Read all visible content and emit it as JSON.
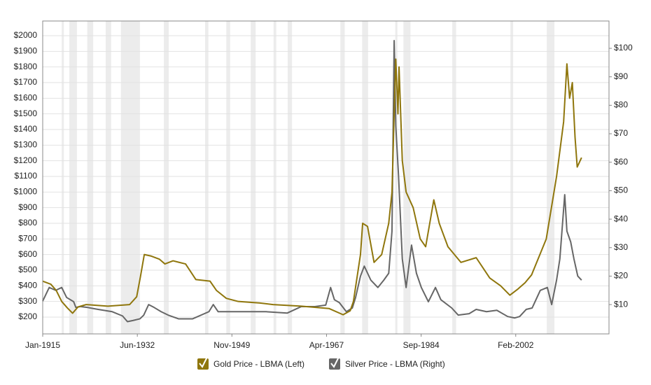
{
  "chart_data": {
    "type": "line",
    "xlim": [
      1915,
      2019.25
    ],
    "xticks": [
      {
        "value": 1915.0,
        "label": "Jan-1915"
      },
      {
        "value": 1932.42,
        "label": "Jun-1932"
      },
      {
        "value": 1949.83,
        "label": "Nov-1949"
      },
      {
        "value": 1967.25,
        "label": "Apr-1967"
      },
      {
        "value": 1984.67,
        "label": "Sep-1984"
      },
      {
        "value": 2002.08,
        "label": "Feb-2002"
      }
    ],
    "ylim": [
      92.5,
      2094
    ],
    "yticks": [
      {
        "value": 200,
        "label": "$200"
      },
      {
        "value": 300,
        "label": "$300"
      },
      {
        "value": 400,
        "label": "$400"
      },
      {
        "value": 500,
        "label": "$500"
      },
      {
        "value": 600,
        "label": "$600"
      },
      {
        "value": 700,
        "label": "$700"
      },
      {
        "value": 800,
        "label": "$800"
      },
      {
        "value": 900,
        "label": "$900"
      },
      {
        "value": 1000,
        "label": "$1000"
      },
      {
        "value": 1100,
        "label": "$1100"
      },
      {
        "value": 1200,
        "label": "$1200"
      },
      {
        "value": 1300,
        "label": "$1300"
      },
      {
        "value": 1400,
        "label": "$1400"
      },
      {
        "value": 1500,
        "label": "$1500"
      },
      {
        "value": 1600,
        "label": "$1600"
      },
      {
        "value": 1700,
        "label": "$1700"
      },
      {
        "value": 1800,
        "label": "$1800"
      },
      {
        "value": 1900,
        "label": "$1900"
      },
      {
        "value": 2000,
        "label": "$2000"
      }
    ],
    "y2lim": [
      -0.3,
      109.6
    ],
    "y2ticks": [
      {
        "value": 10,
        "label": "$10"
      },
      {
        "value": 20,
        "label": "$20"
      },
      {
        "value": 30,
        "label": "$30"
      },
      {
        "value": 40,
        "label": "$40"
      },
      {
        "value": 50,
        "label": "$50"
      },
      {
        "value": 60,
        "label": "$60"
      },
      {
        "value": 70,
        "label": "$70"
      },
      {
        "value": 80,
        "label": "$80"
      },
      {
        "value": 90,
        "label": "$90"
      },
      {
        "value": 100,
        "label": "$100"
      }
    ],
    "grid": true,
    "legend": "bottom",
    "shaded_periods": [
      [
        1918.5,
        1918.9
      ],
      [
        1919.9,
        1921.3
      ],
      [
        1923.2,
        1924.3
      ],
      [
        1926.6,
        1927.6
      ],
      [
        1929.4,
        1932.9
      ],
      [
        1937.3,
        1938.2
      ],
      [
        1944.9,
        1945.5
      ],
      [
        1948.8,
        1949.5
      ],
      [
        1953.3,
        1954.2
      ],
      [
        1957.5,
        1958.0
      ],
      [
        1960.1,
        1960.9
      ],
      [
        1969.8,
        1970.6
      ],
      [
        1973.8,
        1974.9
      ],
      [
        1979.9,
        1980.3
      ],
      [
        1981.4,
        1982.7
      ],
      [
        1990.4,
        1991.1
      ],
      [
        2001.1,
        2001.6
      ],
      [
        2007.8,
        2009.2
      ]
    ],
    "series": [
      {
        "name": "Gold Price - LBMA (Left)",
        "color": "#8f760c",
        "x": [
          1915.0,
          1916.5,
          1917.5,
          1918.5,
          1919.5,
          1920.5,
          1921.5,
          1923,
          1925,
          1927,
          1929,
          1931,
          1932.3,
          1933,
          1933.7,
          1935,
          1936.5,
          1937.5,
          1939,
          1941.3,
          1943.2,
          1945.8,
          1947,
          1948.8,
          1951,
          1955,
          1957.4,
          1962.6,
          1967.7,
          1970.3,
          1971.6,
          1972.2,
          1973.5,
          1973.9,
          1974.8,
          1976,
          1977.4,
          1978.7,
          1979.3,
          1979.7,
          1980,
          1980.4,
          1980.6,
          1981.2,
          1981.9,
          1983.2,
          1984.5,
          1985.5,
          1987,
          1988,
          1989.6,
          1992,
          1994.8,
          1997.3,
          1999.3,
          2001,
          2002.5,
          2003.8,
          2005,
          2007.7,
          2009.6,
          2010.9,
          2011.5,
          2012,
          2012.5,
          2013,
          2013.4,
          2014.2
        ],
        "values": [
          430,
          410,
          370,
          300,
          260,
          225,
          265,
          280,
          275,
          270,
          275,
          280,
          330,
          460,
          600,
          590,
          570,
          540,
          560,
          540,
          440,
          430,
          370,
          320,
          300,
          290,
          280,
          270,
          255,
          215,
          240,
          300,
          600,
          800,
          780,
          550,
          600,
          800,
          1000,
          1500,
          1850,
          1500,
          1800,
          1200,
          1000,
          900,
          700,
          650,
          950,
          800,
          650,
          550,
          580,
          450,
          400,
          340,
          380,
          420,
          470,
          700,
          1100,
          1450,
          1820,
          1600,
          1700,
          1350,
          1160,
          1220
        ]
      },
      {
        "name": "Silver Price - LBMA (Right)",
        "color": "#666666",
        "axis": "y2",
        "x": [
          1915.0,
          1916.2,
          1917.4,
          1918.5,
          1919.4,
          1920.7,
          1921.1,
          1922.0,
          1923.2,
          1925.2,
          1927.8,
          1929.7,
          1930.6,
          1931.6,
          1932.9,
          1933.6,
          1934.5,
          1935.5,
          1936.8,
          1938.1,
          1940.0,
          1942.6,
          1945.6,
          1946.4,
          1947.3,
          1951.0,
          1956.1,
          1960.0,
          1962.6,
          1965.1,
          1967.1,
          1968.0,
          1968.7,
          1969.6,
          1970.9,
          1972.0,
          1972.6,
          1973.5,
          1974.2,
          1975.4,
          1976.7,
          1977.8,
          1978.7,
          1979.3,
          1979.7,
          1980.0,
          1980.5,
          1981.2,
          1981.9,
          1982.9,
          1983.8,
          1984.7,
          1986.0,
          1987.3,
          1988.3,
          1990.3,
          1991.5,
          1993.5,
          1994.8,
          1996.7,
          1998.6,
          2000.6,
          2001.9,
          2002.8,
          2004.0,
          2005.1,
          2006.6,
          2007.9,
          2008.7,
          2009.6,
          2010.2,
          2011.1,
          2011.5,
          2012.2,
          2012.8,
          2013.5,
          2014.2
        ],
        "values": [
          11.2,
          16,
          15,
          16,
          12.5,
          11,
          9,
          9.3,
          9,
          8.3,
          7.5,
          6,
          4,
          4.4,
          5,
          6.3,
          10,
          9,
          7.5,
          6.3,
          5,
          5,
          7.5,
          10,
          7.5,
          7.5,
          7.5,
          7,
          9.3,
          9.3,
          9.8,
          16,
          11.7,
          10.7,
          7.5,
          8.8,
          12.5,
          20,
          23.5,
          18.6,
          16,
          18.6,
          21,
          35.8,
          102.7,
          72.7,
          55.5,
          26,
          16,
          30.9,
          21,
          16,
          11,
          16,
          11.7,
          8.8,
          6.3,
          6.8,
          8.3,
          7.5,
          8,
          5.8,
          5.3,
          5.8,
          8.3,
          8.8,
          15,
          16,
          10,
          18.6,
          26,
          48.6,
          35.8,
          32,
          26,
          20,
          18.6
        ]
      }
    ]
  }
}
